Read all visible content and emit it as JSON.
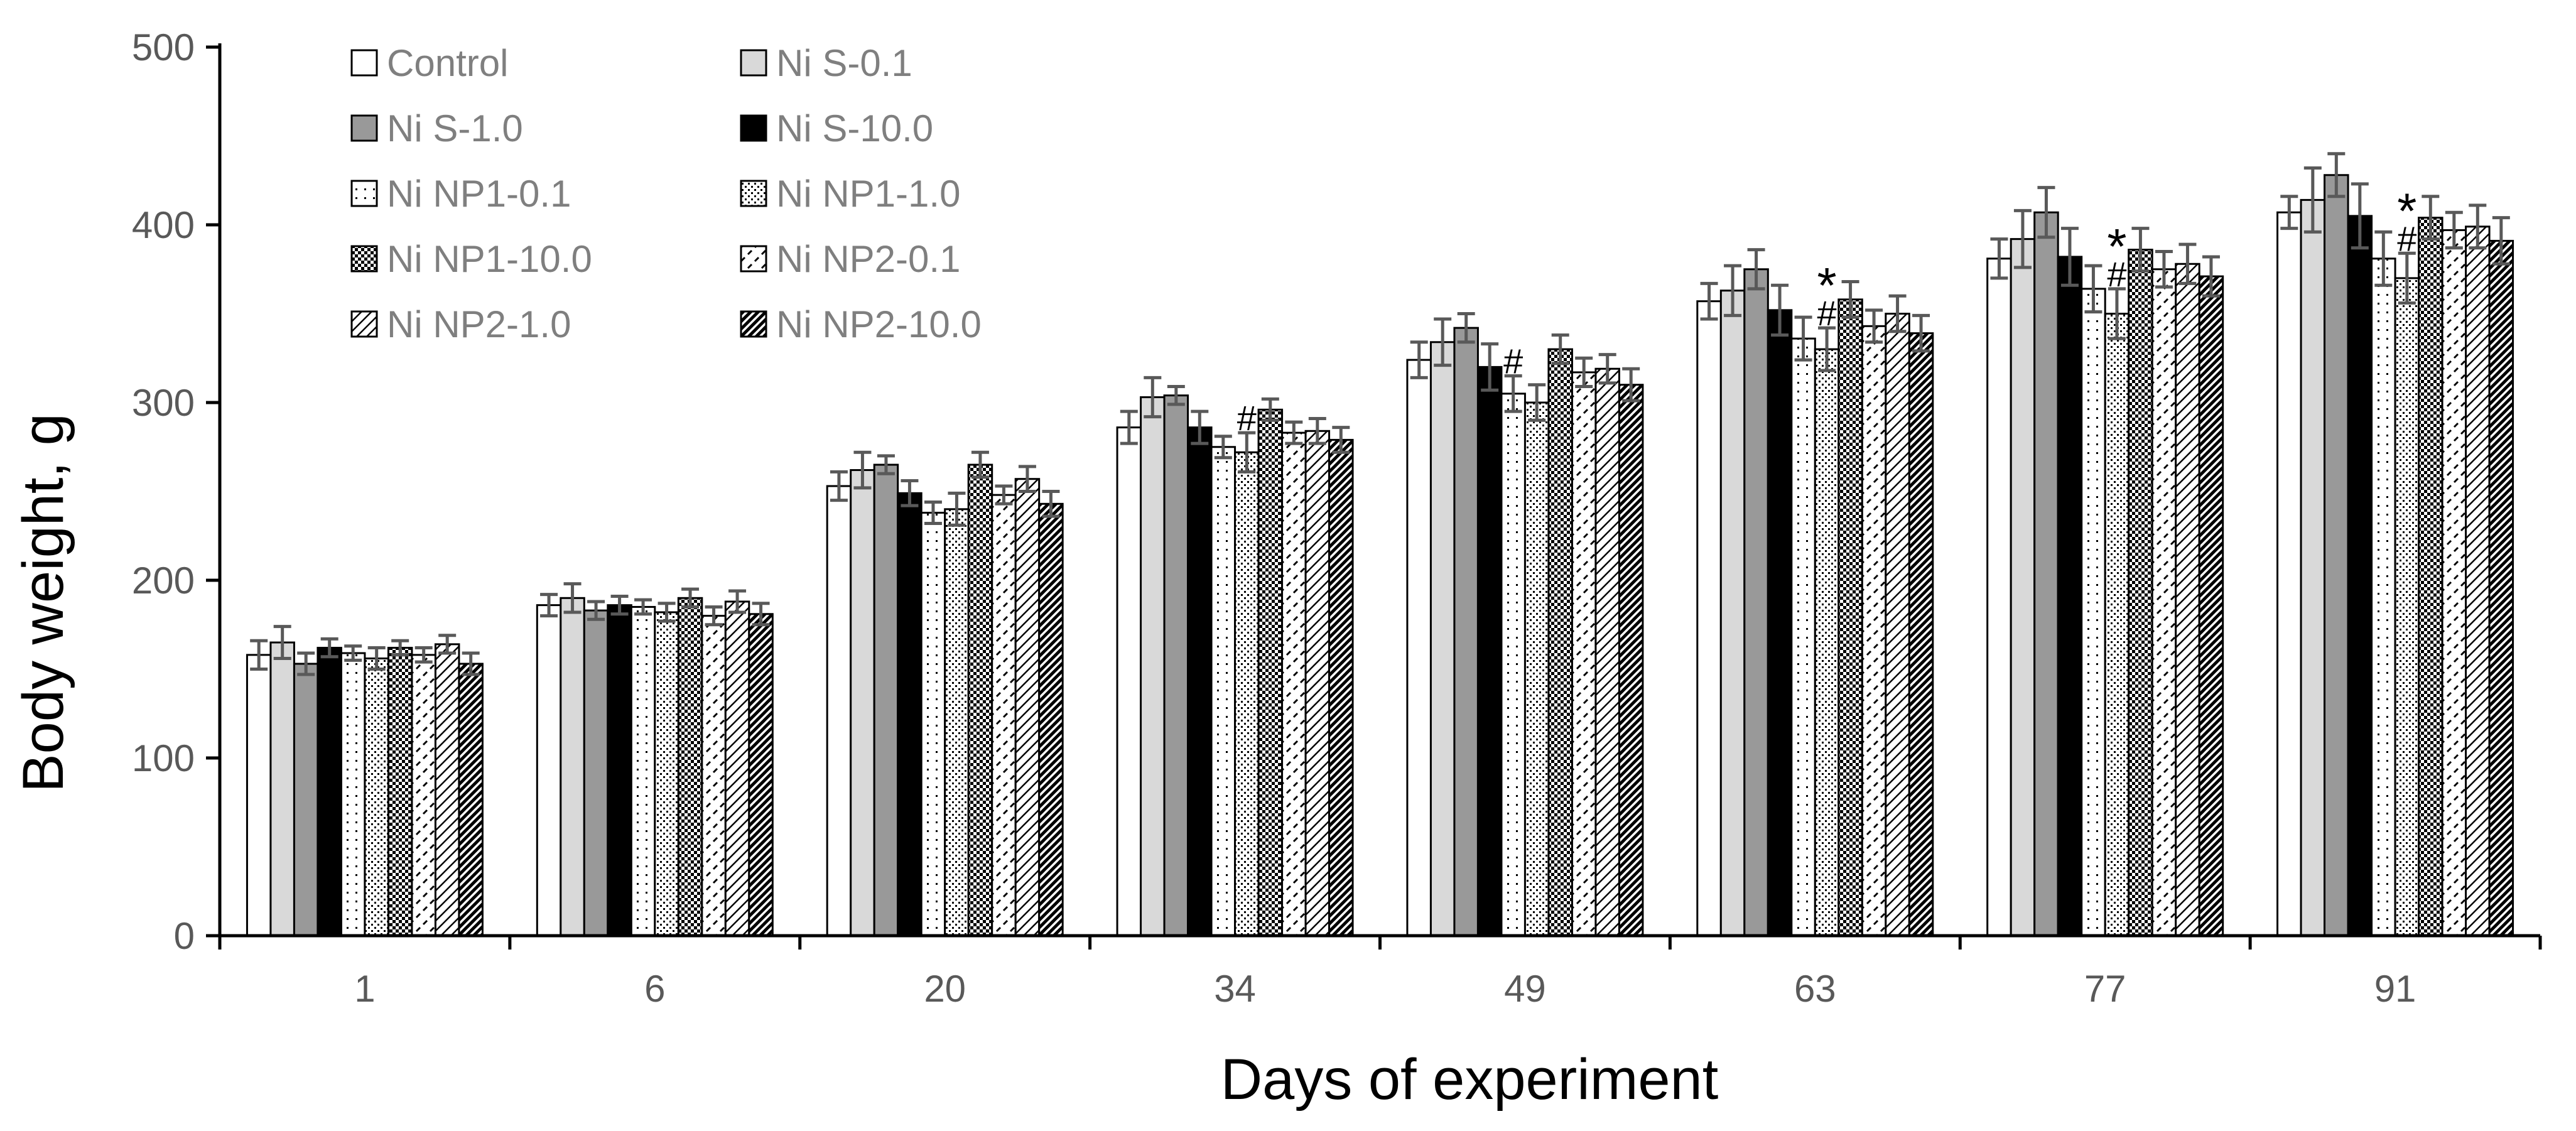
{
  "chart_data": {
    "type": "bar",
    "xlabel": "Days of experiment",
    "ylabel": "Body weight, g",
    "ylim": [
      0,
      500
    ],
    "yticks": [
      0,
      100,
      200,
      300,
      400,
      500
    ],
    "categories": [
      "1",
      "6",
      "20",
      "34",
      "49",
      "63",
      "77",
      "91"
    ],
    "legend_position": "top-left",
    "series": [
      {
        "name": "Control",
        "pattern": "white",
        "values": [
          158,
          186,
          253,
          286,
          324,
          357,
          381,
          407
        ],
        "errors": [
          8,
          6,
          8,
          9,
          10,
          10,
          11,
          9
        ]
      },
      {
        "name": "Ni S-0.1",
        "pattern": "lightgray",
        "values": [
          165,
          190,
          262,
          303,
          334,
          363,
          392,
          414
        ],
        "errors": [
          9,
          8,
          10,
          11,
          13,
          14,
          16,
          18
        ]
      },
      {
        "name": "Ni S-1.0",
        "pattern": "gray",
        "values": [
          153,
          183,
          265,
          304,
          342,
          375,
          407,
          428
        ],
        "errors": [
          6,
          5,
          5,
          5,
          8,
          11,
          14,
          12
        ]
      },
      {
        "name": "Ni S-10.0",
        "pattern": "black",
        "values": [
          162,
          186,
          249,
          286,
          320,
          352,
          382,
          405
        ],
        "errors": [
          5,
          5,
          7,
          9,
          13,
          14,
          16,
          18
        ]
      },
      {
        "name": "Ni NP1-0.1",
        "pattern": "sparse-dots",
        "values": [
          159,
          185,
          238,
          275,
          305,
          336,
          364,
          381
        ],
        "errors": [
          4,
          4,
          6,
          6,
          10,
          12,
          13,
          15
        ]
      },
      {
        "name": "Ni NP1-1.0",
        "pattern": "dense-dots",
        "values": [
          156,
          182,
          240,
          272,
          300,
          330,
          350,
          370
        ],
        "errors": [
          6,
          5,
          9,
          11,
          10,
          12,
          14,
          14
        ]
      },
      {
        "name": "Ni NP1-10.0",
        "pattern": "checker",
        "values": [
          162,
          190,
          265,
          296,
          330,
          358,
          386,
          404
        ],
        "errors": [
          4,
          5,
          7,
          6,
          8,
          10,
          12,
          12
        ]
      },
      {
        "name": "Ni NP2-0.1",
        "pattern": "dashes",
        "values": [
          158,
          180,
          248,
          283,
          317,
          343,
          375,
          397
        ],
        "errors": [
          4,
          5,
          5,
          6,
          8,
          9,
          10,
          10
        ]
      },
      {
        "name": "Ni NP2-1.0",
        "pattern": "diagonal",
        "values": [
          164,
          188,
          257,
          284,
          319,
          350,
          378,
          399
        ],
        "errors": [
          5,
          6,
          7,
          7,
          8,
          10,
          11,
          12
        ]
      },
      {
        "name": "Ni NP2-10.0",
        "pattern": "dense-diagonal",
        "values": [
          153,
          181,
          243,
          279,
          310,
          339,
          371,
          391
        ],
        "errors": [
          6,
          6,
          7,
          7,
          9,
          10,
          11,
          13
        ]
      }
    ],
    "annotations": [
      {
        "category": "34",
        "series": "Ni NP1-1.0",
        "mark": "#"
      },
      {
        "category": "49",
        "series": "Ni NP1-0.1",
        "mark": "#"
      },
      {
        "category": "63",
        "series": "Ni NP1-1.0",
        "mark": "#"
      },
      {
        "category": "63",
        "series": "Ni NP1-1.0",
        "mark": "*"
      },
      {
        "category": "77",
        "series": "Ni NP1-1.0",
        "mark": "#"
      },
      {
        "category": "77",
        "series": "Ni NP1-1.0",
        "mark": "*"
      },
      {
        "category": "91",
        "series": "Ni NP1-1.0",
        "mark": "#"
      },
      {
        "category": "91",
        "series": "Ni NP1-1.0",
        "mark": "*"
      }
    ],
    "colors": {
      "axis": "#000000",
      "tick_text": "#595959",
      "legend_text": "#7f7f7f",
      "error_bar": "#595959",
      "lightgray": "#d9d9d9",
      "gray": "#999999",
      "black": "#000000"
    }
  }
}
